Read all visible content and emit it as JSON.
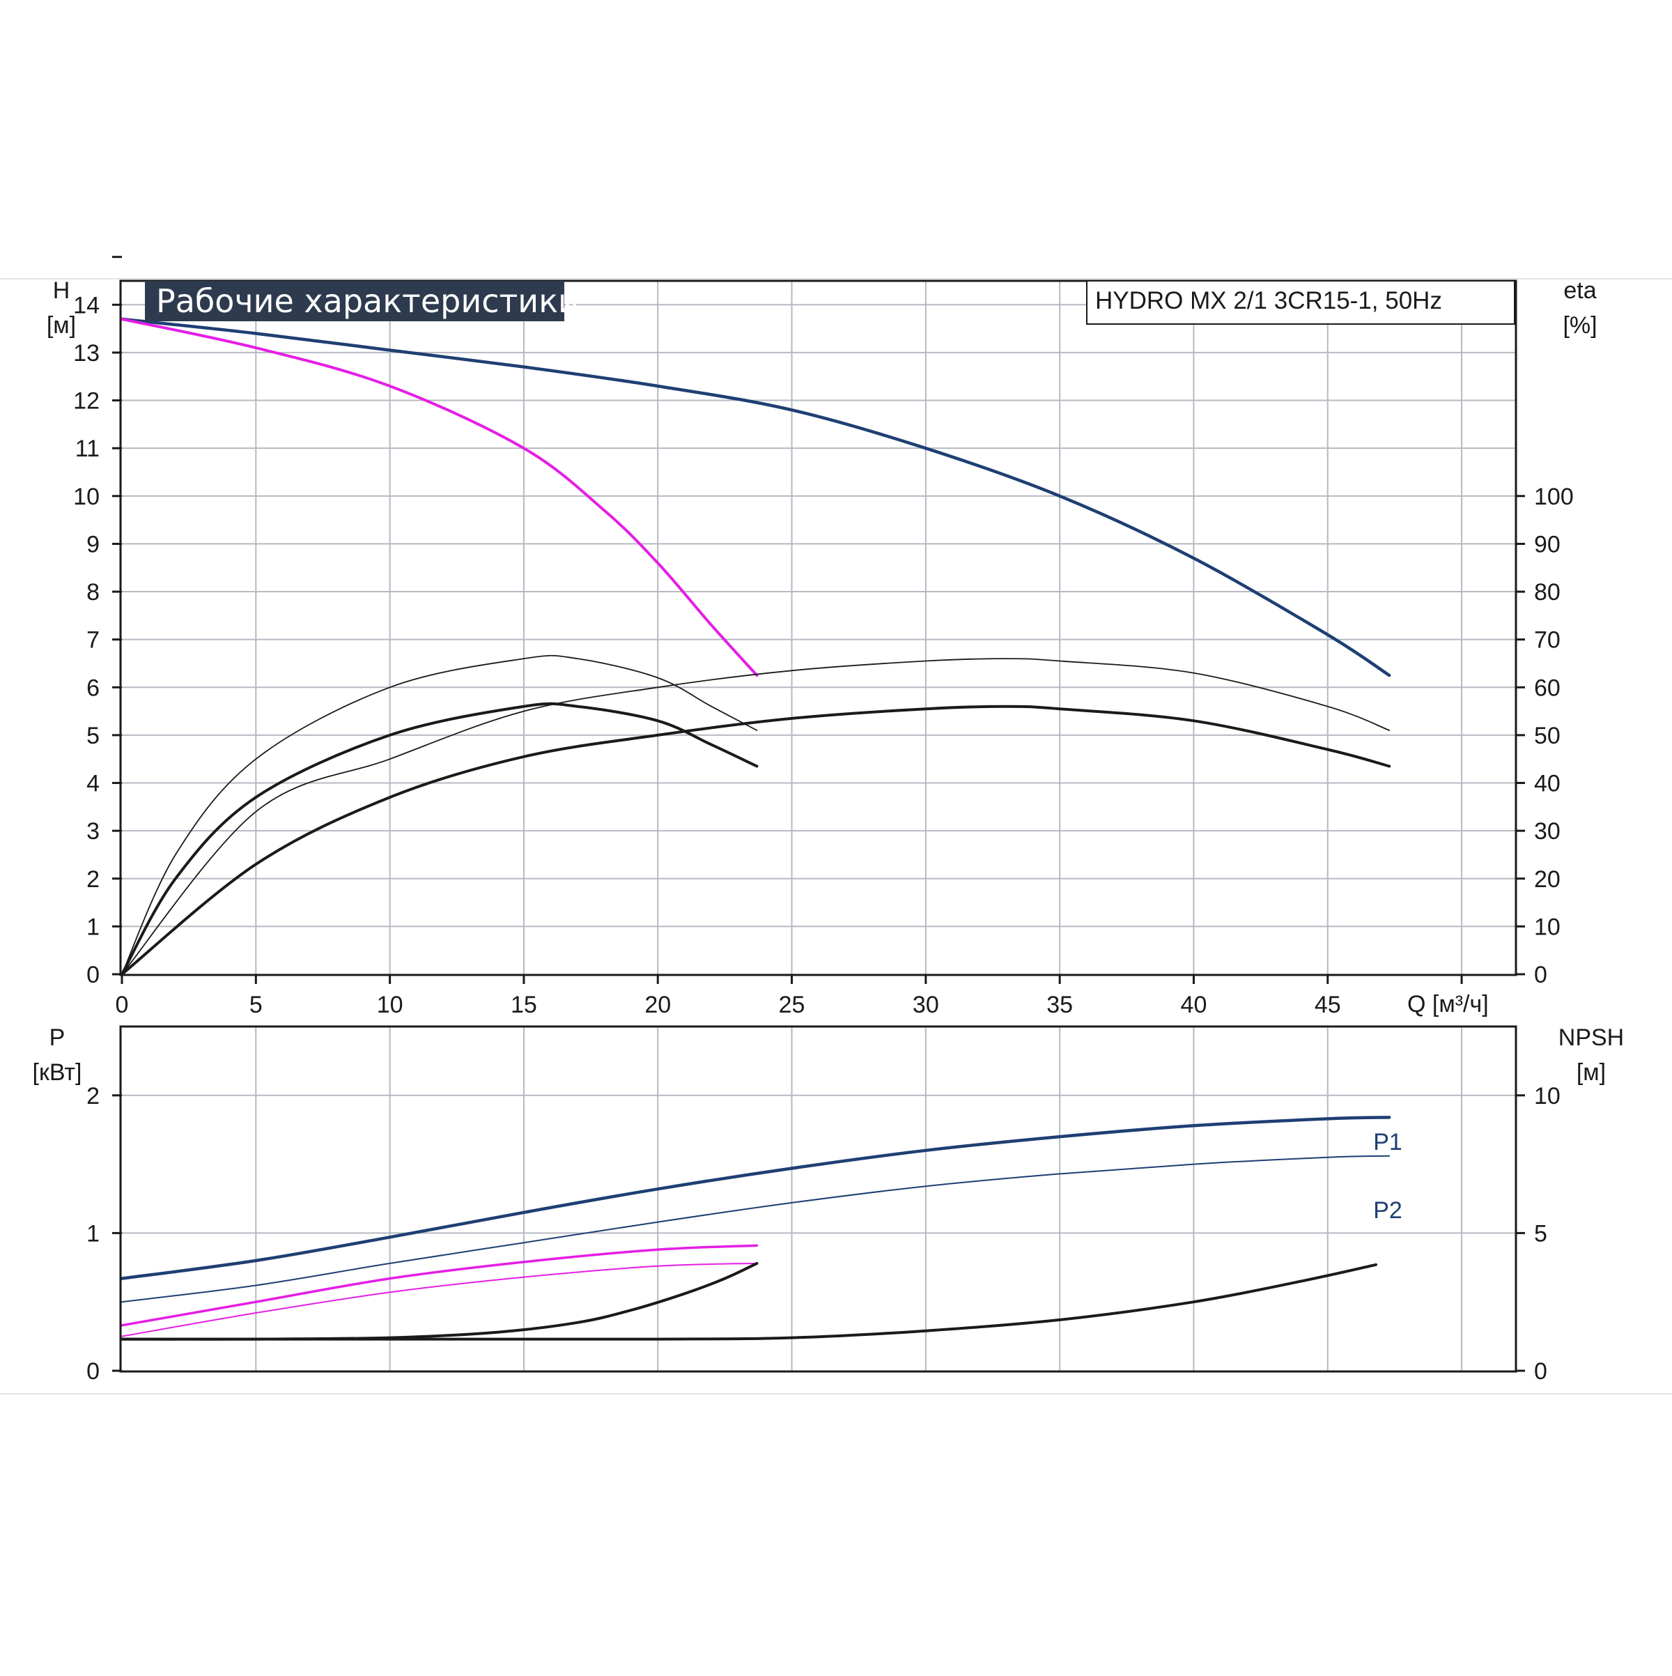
{
  "chart_data": [
    {
      "type": "line",
      "title": "Рабочие характеристики",
      "model": "HYDRO MX 2/1 3CR15-1, 50Hz",
      "xlabel": "Q [м³/ч]",
      "ylabel_left": [
        "H",
        "[м]"
      ],
      "ylabel_right": [
        "eta",
        "[%]"
      ],
      "xlim": [
        0,
        52
      ],
      "ylim_left": [
        0,
        14.5
      ],
      "ylim_right": [
        0,
        145
      ],
      "x_ticks": [
        "0",
        "5",
        "10",
        "15",
        "20",
        "25",
        "30",
        "35",
        "40",
        "45"
      ],
      "y_ticks_left": [
        "0",
        "1",
        "2",
        "3",
        "4",
        "5",
        "6",
        "7",
        "8",
        "9",
        "10",
        "11",
        "12",
        "13",
        "14"
      ],
      "y_ticks_right": [
        "0",
        "10",
        "20",
        "30",
        "40",
        "50",
        "60",
        "70",
        "80",
        "90",
        "100"
      ],
      "grid": true,
      "series": [
        {
          "color": "#1e3f73",
          "axis": "left",
          "width": 4.5,
          "x": [
            0,
            5,
            10,
            15,
            20,
            25,
            30,
            35,
            40,
            45,
            47.3
          ],
          "y": [
            13.7,
            13.4,
            13.05,
            12.7,
            12.3,
            11.8,
            11.0,
            10.0,
            8.7,
            7.1,
            6.25
          ]
        },
        {
          "color": "#e51ee5",
          "axis": "left",
          "width": 4,
          "x": [
            0,
            5,
            10,
            15,
            18,
            20,
            22,
            23.7
          ],
          "y": [
            13.7,
            13.1,
            12.3,
            11.0,
            9.7,
            8.6,
            7.3,
            6.25
          ]
        },
        {
          "color": "#1a1a1a",
          "axis": "right",
          "width": 1.8,
          "x": [
            0,
            2,
            5,
            10,
            15,
            17,
            20,
            22,
            23.7
          ],
          "y": [
            0,
            25,
            45,
            60,
            66,
            66,
            62,
            56,
            51
          ]
        },
        {
          "color": "#1a1a1a",
          "axis": "right",
          "width": 4,
          "x": [
            0,
            2,
            5,
            10,
            15,
            17,
            20,
            22,
            23.7
          ],
          "y": [
            0,
            20,
            37,
            50,
            56,
            56,
            53,
            48,
            43.5
          ]
        },
        {
          "color": "#1a1a1a",
          "axis": "right",
          "width": 1.8,
          "x": [
            0,
            5,
            10,
            15,
            20,
            25,
            30,
            33,
            35,
            40,
            45,
            47.3
          ],
          "y": [
            0,
            34,
            45,
            55,
            60,
            63.5,
            65.5,
            66,
            65.5,
            63,
            56,
            51
          ]
        },
        {
          "color": "#1a1a1a",
          "axis": "right",
          "width": 4,
          "x": [
            0,
            5,
            10,
            15,
            20,
            25,
            30,
            33,
            35,
            40,
            45,
            47.3
          ],
          "y": [
            0,
            23,
            37,
            45.5,
            50,
            53.5,
            55.5,
            56,
            55.5,
            53,
            47,
            43.5
          ]
        }
      ]
    },
    {
      "type": "line",
      "ylabel_left": [
        "P",
        "[кВт]"
      ],
      "ylabel_right": [
        "NPSH",
        "[м]"
      ],
      "xlim": [
        0,
        52
      ],
      "ylim_left": [
        0,
        2.5
      ],
      "ylim_right": [
        0,
        12.5
      ],
      "y_ticks_left": [
        "0",
        "1",
        "2"
      ],
      "y_ticks_right": [
        "0",
        "5",
        "10"
      ],
      "grid": true,
      "series": [
        {
          "name": "P1",
          "color": "#1e3f73",
          "axis": "left",
          "width": 4.5,
          "x": [
            0,
            5,
            10,
            15,
            20,
            25,
            30,
            35,
            40,
            45,
            47.3
          ],
          "y": [
            0.67,
            0.8,
            0.97,
            1.15,
            1.32,
            1.47,
            1.6,
            1.7,
            1.78,
            1.83,
            1.84
          ]
        },
        {
          "name": "P2",
          "color": "#1e3f73",
          "axis": "left",
          "width": 2,
          "x": [
            0,
            5,
            10,
            15,
            20,
            25,
            30,
            35,
            40,
            45,
            47.3
          ],
          "y": [
            0.5,
            0.62,
            0.78,
            0.93,
            1.08,
            1.22,
            1.34,
            1.43,
            1.5,
            1.55,
            1.56
          ]
        },
        {
          "color": "#e51ee5",
          "axis": "left",
          "width": 3.5,
          "x": [
            0,
            5,
            10,
            15,
            20,
            23.7
          ],
          "y": [
            0.33,
            0.5,
            0.67,
            0.79,
            0.88,
            0.91
          ]
        },
        {
          "color": "#e51ee5",
          "axis": "left",
          "width": 2,
          "x": [
            0,
            5,
            10,
            15,
            20,
            23.7
          ],
          "y": [
            0.25,
            0.42,
            0.57,
            0.68,
            0.76,
            0.78
          ]
        },
        {
          "color": "#1a1a1a",
          "axis": "right",
          "width": 4,
          "x": [
            0,
            5,
            10,
            14,
            17,
            19,
            21,
            22.5,
            23.7
          ],
          "y": [
            1.15,
            1.15,
            1.2,
            1.4,
            1.75,
            2.2,
            2.8,
            3.35,
            3.9
          ]
        },
        {
          "color": "#1a1a1a",
          "axis": "right",
          "width": 4,
          "x": [
            0,
            10,
            20,
            25,
            30,
            35,
            40,
            44,
            46.8
          ],
          "y": [
            1.15,
            1.15,
            1.15,
            1.2,
            1.45,
            1.85,
            2.5,
            3.25,
            3.85
          ]
        }
      ]
    }
  ]
}
